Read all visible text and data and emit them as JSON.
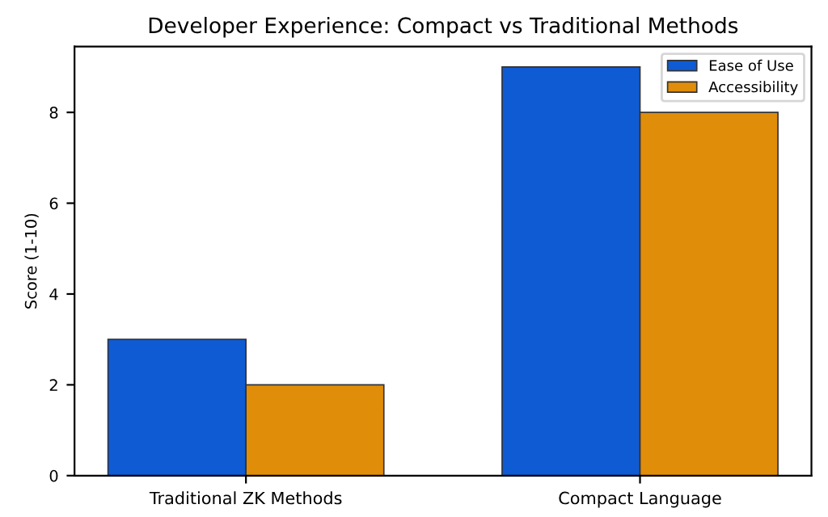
{
  "chart_data": {
    "type": "bar",
    "title": "Developer Experience: Compact vs Traditional Methods",
    "ylabel": "Score (1-10)",
    "categories": [
      "Traditional ZK Methods",
      "Compact Language"
    ],
    "series": [
      {
        "name": "Ease of Use",
        "color": "#0f5bd4",
        "values": [
          3,
          9
        ]
      },
      {
        "name": "Accessibility",
        "color": "#e08d0a",
        "values": [
          2,
          8
        ]
      }
    ],
    "ylim": [
      0,
      9.45
    ],
    "yticks": [
      0,
      2,
      4,
      6,
      8
    ],
    "legend": "top right"
  }
}
